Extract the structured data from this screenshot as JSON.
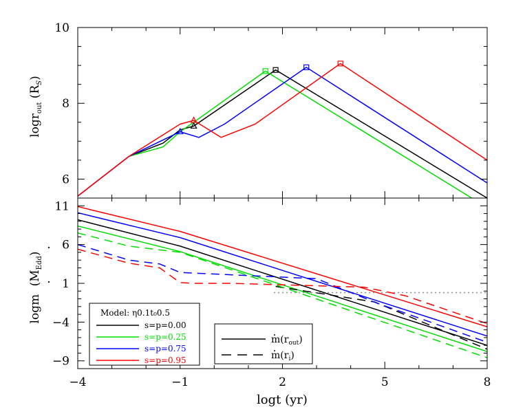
{
  "chart_data": [
    {
      "type": "line",
      "panel": "top",
      "ylabel": "logr_out (R_S)",
      "ylabel_parts": {
        "main": "logr",
        "sub": "out",
        "unit_open": "(R",
        "unit_sub": "S",
        "unit_close": ")"
      },
      "xlim": [
        -4,
        8
      ],
      "ylim": [
        5.5,
        10
      ],
      "y_ticks_labeled": [
        "6",
        "8",
        "10"
      ],
      "grid": false,
      "series": [
        {
          "name": "s=p=0.00",
          "color": "#000000",
          "points": [
            [
              -4,
              5.55
            ],
            [
              -2.5,
              6.6
            ],
            [
              -1.5,
              6.95
            ],
            [
              -1.0,
              7.3
            ],
            [
              -0.6,
              7.4
            ],
            [
              1.8,
              8.88
            ],
            [
              8,
              5.5
            ]
          ],
          "markers": [
            {
              "shape": "triangle",
              "x": -0.6,
              "y": 7.4
            },
            {
              "shape": "square",
              "x": 1.8,
              "y": 8.88
            }
          ]
        },
        {
          "name": "s=p=0.25",
          "color": "#00dd00",
          "points": [
            [
              -4,
              5.55
            ],
            [
              -2.5,
              6.6
            ],
            [
              -1.5,
              6.85
            ],
            [
              -1.0,
              7.25
            ],
            [
              -0.6,
              7.5
            ],
            [
              1.5,
              8.85
            ],
            [
              8,
              5.25
            ]
          ],
          "markers": [
            {
              "shape": "square",
              "x": 1.5,
              "y": 8.85
            }
          ]
        },
        {
          "name": "s=p=0.75",
          "color": "#0000ff",
          "points": [
            [
              -4,
              5.55
            ],
            [
              -2.5,
              6.6
            ],
            [
              -1.0,
              7.25
            ],
            [
              -0.45,
              7.1
            ],
            [
              0.3,
              7.45
            ],
            [
              2.7,
              8.95
            ],
            [
              8,
              5.9
            ]
          ],
          "markers": [
            {
              "shape": "triangle",
              "x": -1.0,
              "y": 7.25
            },
            {
              "shape": "square",
              "x": 2.7,
              "y": 8.95
            }
          ]
        },
        {
          "name": "s=p=0.95",
          "color": "#ff0000",
          "points": [
            [
              -4,
              5.55
            ],
            [
              -2.5,
              6.6
            ],
            [
              -1.0,
              7.45
            ],
            [
              -0.6,
              7.55
            ],
            [
              0.2,
              7.1
            ],
            [
              1.2,
              7.45
            ],
            [
              3.7,
              9.05
            ],
            [
              8,
              6.5
            ]
          ],
          "markers": [
            {
              "shape": "triangle",
              "x": -0.6,
              "y": 7.55
            },
            {
              "shape": "square",
              "x": 3.7,
              "y": 9.05
            }
          ]
        }
      ]
    },
    {
      "type": "line",
      "panel": "bottom",
      "xlabel": "logt (yr)",
      "ylabel": "logṁ (Ṁ_Edd)",
      "ylabel_parts": {
        "main": "logm",
        "unit_open": "(M",
        "unit_sub": "Edd",
        "unit_close": ")"
      },
      "xlim": [
        -4,
        8
      ],
      "ylim": [
        -10,
        12
      ],
      "x_ticks_labeled": [
        "−4",
        "−1",
        "2",
        "5",
        "8"
      ],
      "y_ticks_labeled": [
        "11",
        "6",
        "1",
        "−4",
        "−9"
      ],
      "reference_line": {
        "y": -0.2,
        "x_from": 1.75,
        "x_to": 8,
        "style": "dotted",
        "color": "#888888"
      },
      "series": [
        {
          "name": "s=p=0.00",
          "quantity": "ṁ(r_out)",
          "color": "#000000",
          "dash": "solid",
          "points": [
            [
              -4,
              9.2
            ],
            [
              -1,
              5.8
            ],
            [
              8,
              -7.0
            ]
          ]
        },
        {
          "name": "s=p=0.25",
          "quantity": "ṁ(r_out)",
          "color": "#00dd00",
          "dash": "solid",
          "points": [
            [
              -4,
              8.4
            ],
            [
              -1,
              5.1
            ],
            [
              8,
              -7.8
            ]
          ]
        },
        {
          "name": "s=p=0.75",
          "quantity": "ṁ(r_out)",
          "color": "#0000ff",
          "dash": "solid",
          "points": [
            [
              -4,
              10.1
            ],
            [
              -1,
              6.9
            ],
            [
              8,
              -5.8
            ]
          ]
        },
        {
          "name": "s=p=0.95",
          "quantity": "ṁ(r_out)",
          "color": "#ff0000",
          "dash": "solid",
          "points": [
            [
              -4,
              10.9
            ],
            [
              -1,
              7.7
            ],
            [
              8,
              -4.6
            ]
          ]
        },
        {
          "name": "s=p=0.00",
          "quantity": "ṁ(r_i)",
          "color": "#000000",
          "dash": "dashed",
          "points": [
            [
              1.8,
              0.6
            ],
            [
              4.7,
              -1.4
            ],
            [
              8,
              -7.5
            ]
          ]
        },
        {
          "name": "s=p=0.25",
          "quantity": "ṁ(r_i)",
          "color": "#00dd00",
          "dash": "dashed",
          "points": [
            [
              -4,
              7.5
            ],
            [
              -2.5,
              5.8
            ],
            [
              -1,
              5.0
            ],
            [
              1.8,
              0.8
            ],
            [
              8,
              -8.6
            ]
          ]
        },
        {
          "name": "s=p=0.75",
          "quantity": "ṁ(r_i)",
          "color": "#0000ff",
          "dash": "dashed",
          "points": [
            [
              -4,
              6.0
            ],
            [
              -2.5,
              4.0
            ],
            [
              -1.6,
              3.5
            ],
            [
              -1.0,
              2.4
            ],
            [
              0.5,
              2.1
            ],
            [
              3.0,
              1.6
            ],
            [
              4.8,
              -1.6
            ],
            [
              8,
              -6.6
            ]
          ]
        },
        {
          "name": "s=p=0.95",
          "quantity": "ṁ(r_i)",
          "color": "#ff0000",
          "dash": "dashed",
          "points": [
            [
              -4,
              5.4
            ],
            [
              -2.5,
              3.6
            ],
            [
              -1.6,
              3.0
            ],
            [
              -1.0,
              1.1
            ],
            [
              -0.6,
              1.0
            ],
            [
              0.5,
              1.0
            ],
            [
              4.4,
              0.5
            ],
            [
              5.6,
              -0.6
            ],
            [
              8,
              -4.2
            ]
          ]
        }
      ]
    }
  ],
  "legend_models": {
    "title": "Model: η0.1t₀0.5",
    "entries": [
      {
        "label": "s=p=0.00",
        "color": "#000000"
      },
      {
        "label": "s=p=0.25",
        "color": "#00dd00"
      },
      {
        "label": "s=p=0.75",
        "color": "#0000ff"
      },
      {
        "label": "s=p=0.95",
        "color": "#ff0000"
      }
    ]
  },
  "legend_lines": {
    "entries": [
      {
        "label": "ṁ(r_out)",
        "main": "m(r",
        "sub": "out",
        "close": ")",
        "dash": "solid"
      },
      {
        "label": "ṁ(r_i)",
        "main": "m(r",
        "sub": "i",
        "close": ")",
        "dash": "dashed"
      }
    ]
  }
}
